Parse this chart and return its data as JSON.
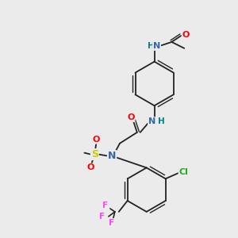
{
  "bg_color": "#ebebeb",
  "bond_color": "#222222",
  "colors": {
    "N": "#3366aa",
    "N2": "#008080",
    "O": "#ff0000",
    "S": "#cccc00",
    "Cl": "#22aa22",
    "F": "#ff44ff",
    "C": "#222222"
  },
  "font_size": 8.0
}
